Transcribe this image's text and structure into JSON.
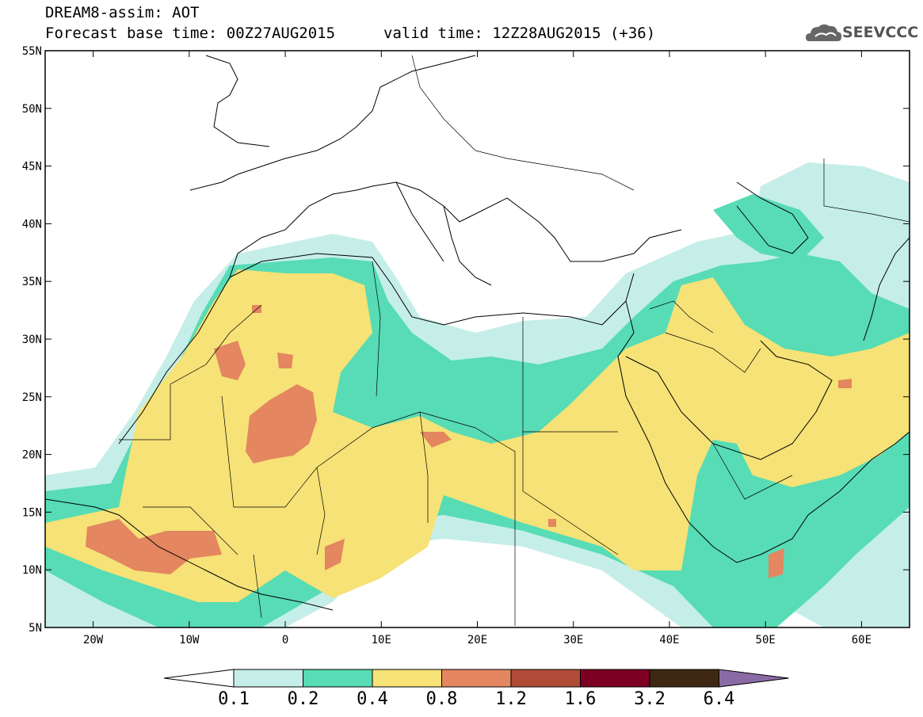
{
  "header": {
    "line1": "DREAM8-assim: AOT",
    "line2": "Forecast base time: 00Z27AUG2015",
    "valid": "valid time: 12Z28AUG2015 (+36)",
    "logo_text": "SEEVCCC",
    "logo_icon": "cloud-icon"
  },
  "map": {
    "lon_range": [
      -25,
      65
    ],
    "lat_range": [
      5,
      55
    ],
    "x_ticks": [
      {
        "lon": -20,
        "label": "20W"
      },
      {
        "lon": -10,
        "label": "10W"
      },
      {
        "lon": 0,
        "label": "0"
      },
      {
        "lon": 10,
        "label": "10E"
      },
      {
        "lon": 20,
        "label": "20E"
      },
      {
        "lon": 30,
        "label": "30E"
      },
      {
        "lon": 40,
        "label": "40E"
      },
      {
        "lon": 50,
        "label": "50E"
      },
      {
        "lon": 60,
        "label": "60E"
      }
    ],
    "y_ticks": [
      {
        "lat": 55,
        "label": "55N"
      },
      {
        "lat": 50,
        "label": "50N"
      },
      {
        "lat": 45,
        "label": "45N"
      },
      {
        "lat": 40,
        "label": "40N"
      },
      {
        "lat": 35,
        "label": "35N"
      },
      {
        "lat": 30,
        "label": "30N"
      },
      {
        "lat": 25,
        "label": "25N"
      },
      {
        "lat": 20,
        "label": "20N"
      },
      {
        "lat": 15,
        "label": "15N"
      },
      {
        "lat": 10,
        "label": "10N"
      },
      {
        "lat": 5,
        "label": "5N"
      }
    ]
  },
  "colorbar": {
    "levels": [
      "0.1",
      "0.2",
      "0.4",
      "0.8",
      "1.2",
      "1.6",
      "3.2",
      "6.4"
    ],
    "colors": [
      "#ffffff",
      "#c6eee9",
      "#57dcb5",
      "#f6e276",
      "#e4865f",
      "#b04b38",
      "#7d0022",
      "#3e2813",
      "#8a6aa5"
    ]
  }
}
